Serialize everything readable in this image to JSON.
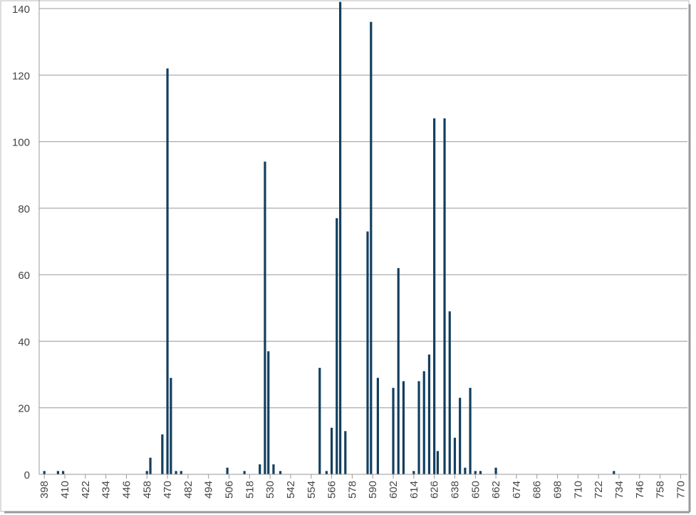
{
  "chart_data": {
    "type": "bar",
    "x": [
      398,
      406,
      409,
      458,
      460,
      467,
      470,
      472,
      475,
      478,
      505,
      515,
      524,
      527,
      529,
      532,
      536,
      559,
      563,
      566,
      569,
      571,
      574,
      587,
      589,
      593,
      602,
      605,
      608,
      614,
      617,
      620,
      623,
      626,
      628,
      632,
      635,
      638,
      641,
      644,
      647,
      650,
      653,
      662,
      731
    ],
    "values": [
      1,
      1,
      1,
      1,
      5,
      12,
      122,
      29,
      1,
      1,
      2,
      1,
      3,
      94,
      37,
      3,
      1,
      32,
      1,
      14,
      77,
      142,
      13,
      73,
      136,
      29,
      26,
      62,
      28,
      1,
      28,
      31,
      36,
      107,
      7,
      107,
      49,
      11,
      23,
      2,
      26,
      1,
      1,
      2,
      1
    ],
    "color": "#123f5f",
    "xlim": [
      395,
      774
    ],
    "xticks": [
      398,
      410,
      422,
      434,
      446,
      458,
      470,
      482,
      494,
      506,
      518,
      530,
      542,
      554,
      566,
      578,
      590,
      602,
      614,
      626,
      638,
      650,
      662,
      674,
      686,
      698,
      710,
      722,
      734,
      746,
      758,
      770
    ],
    "ylim": [
      0,
      140
    ],
    "yticks": [
      0,
      20,
      40,
      60,
      80,
      100,
      120,
      140
    ],
    "grid": true
  }
}
